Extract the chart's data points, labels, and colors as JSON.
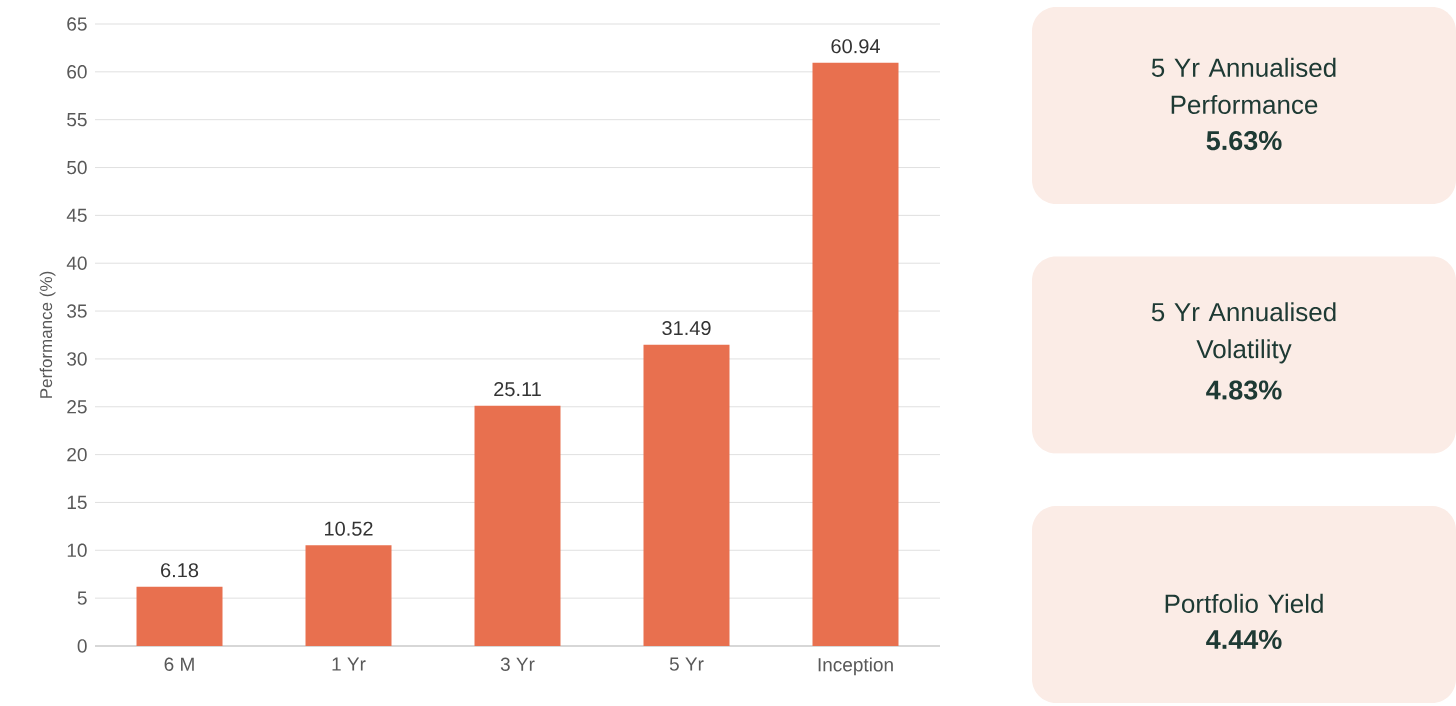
{
  "chart_data": [
    {
      "type": "bar",
      "ylabel": "Performance (%)",
      "categories": [
        "6 M",
        "1 Yr",
        "3 Yr",
        "5 Yr",
        "Inception"
      ],
      "values": [
        6.18,
        10.52,
        25.11,
        31.49,
        60.94
      ],
      "color": "#e8704f",
      "ylim": [
        0,
        65
      ],
      "yticks": [
        0,
        5,
        10,
        15,
        20,
        25,
        30,
        35,
        40,
        45,
        50,
        55,
        60,
        65
      ],
      "grid": "y",
      "data_labels": true
    },
    {
      "type": "other",
      "annotations": [
        "5 Yr Annualised Performance",
        "5.63%",
        "5 Yr Annualised Volatility",
        "4.83%",
        "Portfolio Yield",
        "4.44%"
      ]
    }
  ]
}
